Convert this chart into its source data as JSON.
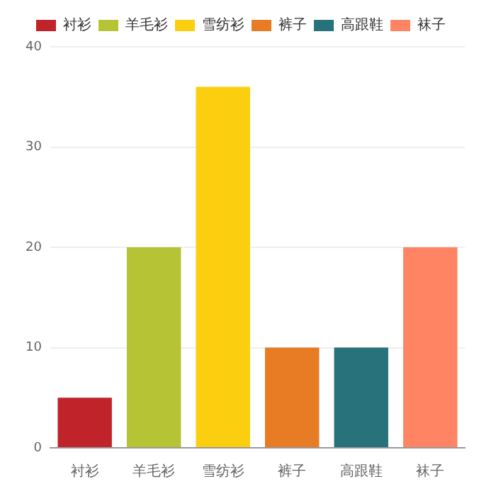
{
  "chart_data": {
    "type": "bar",
    "categories": [
      "衬衫",
      "羊毛衫",
      "雪纺衫",
      "裤子",
      "高跟鞋",
      "袜子"
    ],
    "series": [
      {
        "name": "衬衫",
        "color": "#c1232b",
        "values": [
          5,
          null,
          null,
          null,
          null,
          null
        ]
      },
      {
        "name": "羊毛衫",
        "color": "#b5c334",
        "values": [
          null,
          20,
          null,
          null,
          null,
          null
        ]
      },
      {
        "name": "雪纺衫",
        "color": "#fcce10",
        "values": [
          null,
          null,
          36,
          null,
          null,
          null
        ]
      },
      {
        "name": "裤子",
        "color": "#e87c25",
        "values": [
          null,
          null,
          null,
          10,
          null,
          null
        ]
      },
      {
        "name": "高跟鞋",
        "color": "#27727b",
        "values": [
          null,
          null,
          null,
          null,
          10,
          null
        ]
      },
      {
        "name": "袜子",
        "color": "#fe8463",
        "values": [
          null,
          null,
          null,
          null,
          null,
          20
        ]
      }
    ],
    "ylim": [
      0,
      40
    ],
    "yticks": [
      0,
      10,
      20,
      30,
      40
    ],
    "grid": "y",
    "legend": "top"
  }
}
